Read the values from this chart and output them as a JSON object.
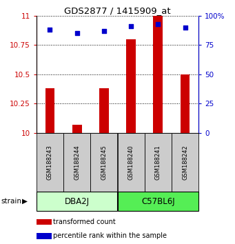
{
  "title": "GDS2877 / 1415909_at",
  "samples": [
    "GSM188243",
    "GSM188244",
    "GSM188245",
    "GSM188240",
    "GSM188241",
    "GSM188242"
  ],
  "groups": [
    {
      "name": "DBA2J",
      "indices": [
        0,
        1,
        2
      ],
      "color": "#ccffcc"
    },
    {
      "name": "C57BL6J",
      "indices": [
        3,
        4,
        5
      ],
      "color": "#55ee55"
    }
  ],
  "red_values": [
    10.385,
    10.07,
    10.385,
    10.8,
    11.0,
    10.5
  ],
  "blue_values_pct": [
    88,
    85,
    87,
    91,
    93,
    90
  ],
  "ylim_left": [
    10.0,
    11.0
  ],
  "yticks_left": [
    10.0,
    10.25,
    10.5,
    10.75,
    11.0
  ],
  "ytick_labels_left": [
    "10",
    "10.25",
    "10.5",
    "10.75",
    "11"
  ],
  "ylim_right": [
    0,
    100
  ],
  "yticks_right": [
    0,
    25,
    50,
    75,
    100
  ],
  "ytick_labels_right": [
    "0",
    "25",
    "50",
    "75",
    "100%"
  ],
  "left_axis_color": "#cc0000",
  "right_axis_color": "#0000cc",
  "bar_color": "#cc0000",
  "dot_color": "#0000cc",
  "sample_box_color": "#cccccc",
  "legend_red": "transformed count",
  "legend_blue": "percentile rank within the sample",
  "strain_label": "strain"
}
